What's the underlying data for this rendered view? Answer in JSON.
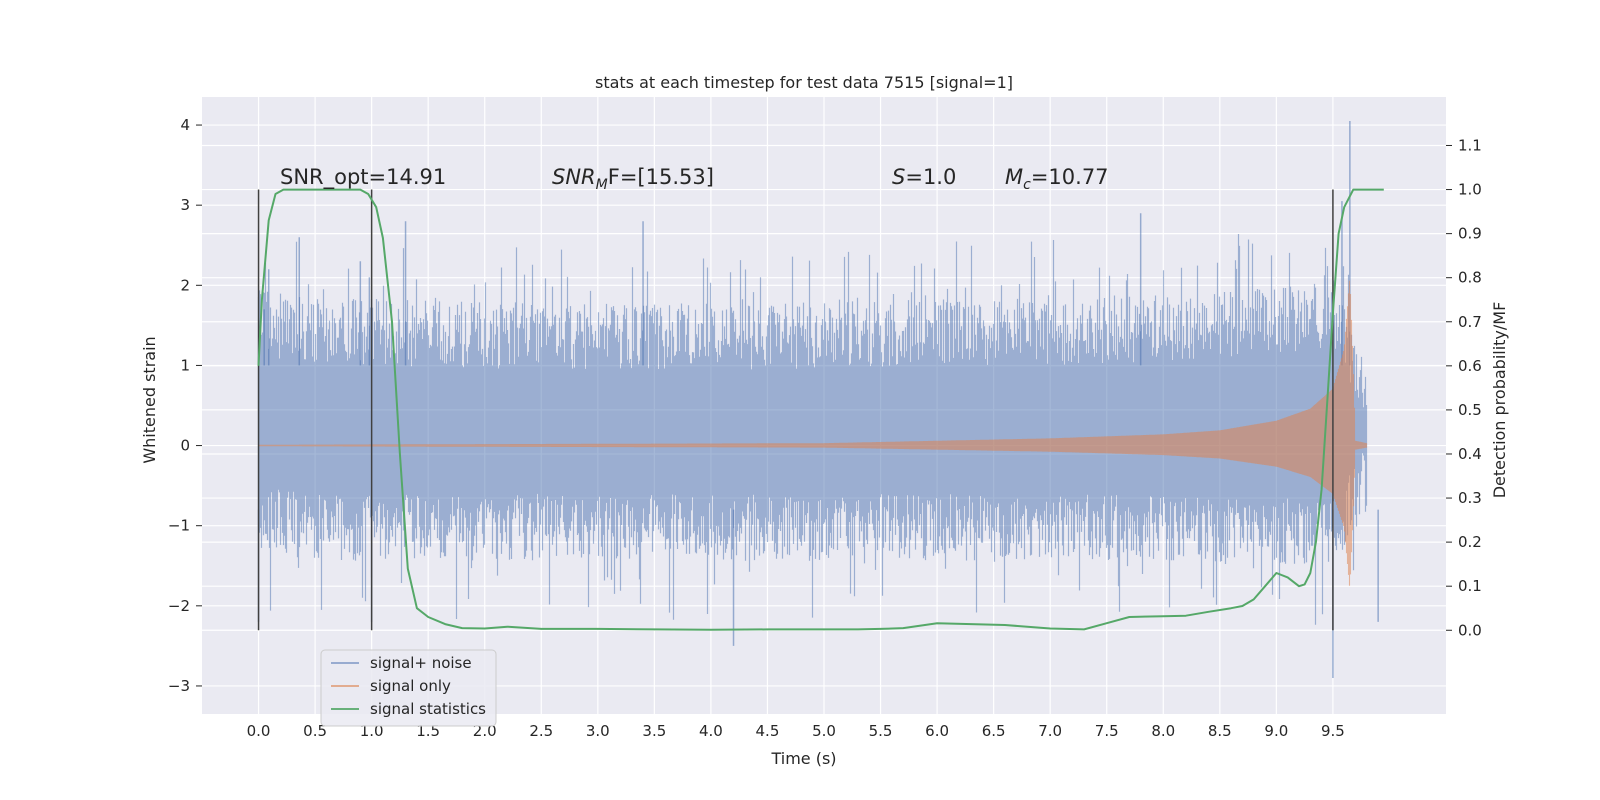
{
  "chart_data": {
    "type": "line",
    "title": "stats at each timestep for test data 7515 [signal=1]",
    "xlabel": "Time (s)",
    "ylabel_left": "Whitened strain",
    "ylabel_right": "Detection probability/MF",
    "xlim": [
      -0.5,
      10.5
    ],
    "ylim_left": [
      -3.35,
      4.35
    ],
    "ylim_right": [
      -0.19,
      1.21
    ],
    "x_ticks": [
      "0.0",
      "0.5",
      "1.0",
      "1.5",
      "2.0",
      "2.5",
      "3.0",
      "3.5",
      "4.0",
      "4.5",
      "5.0",
      "5.5",
      "6.0",
      "6.5",
      "7.0",
      "7.5",
      "8.0",
      "8.5",
      "9.0",
      "9.5"
    ],
    "y_ticks_left": [
      -3,
      -2,
      -1,
      0,
      1,
      2,
      3,
      4
    ],
    "y_ticks_right": [
      "0.0",
      "0.1",
      "0.2",
      "0.3",
      "0.4",
      "0.5",
      "0.6",
      "0.7",
      "0.8",
      "0.9",
      "1.0",
      "1.1"
    ],
    "grid": true,
    "legend_position": "lower-left",
    "colors": {
      "background": "#eaeaf2",
      "grid": "#ffffff",
      "noise": "#4c72b0",
      "signal": "#dd8452",
      "stats": "#55a868",
      "markers": "#404040"
    },
    "annotations": {
      "snr_opt": "SNR_opt=14.91",
      "snr_mf_prefix": "SNR",
      "snr_mf_sub": "M",
      "snr_mf_suffix": "F=[15.53]",
      "s_var": "S",
      "s_value": "=1.0",
      "mc_var": "M",
      "mc_sub": "c",
      "mc_value": "=10.77"
    },
    "vertical_markers_x": [
      0.0,
      1.0,
      9.5
    ],
    "noise_envelope": {
      "x": [
        0.0,
        0.5,
        1.0,
        2.0,
        3.0,
        4.0,
        5.0,
        6.0,
        7.0,
        8.0,
        8.5,
        9.0,
        9.5,
        9.8
      ],
      "upper": [
        1.7,
        1.6,
        1.6,
        1.55,
        1.55,
        1.55,
        1.55,
        1.6,
        1.6,
        1.65,
        1.7,
        1.75,
        1.8,
        1.0
      ],
      "lower": [
        -1.1,
        -1.2,
        -1.2,
        -1.2,
        -1.2,
        -1.2,
        -1.2,
        -1.2,
        -1.2,
        -1.2,
        -1.25,
        -1.25,
        -1.3,
        -0.6
      ]
    },
    "noise_peaks": {
      "x": [
        0.0,
        0.05,
        0.09,
        0.36,
        0.9,
        0.98,
        1.0,
        1.3,
        3.4,
        4.2,
        7.8,
        9.5,
        9.58,
        9.65,
        9.9
      ],
      "values": [
        -2.2,
        1.7,
        2.2,
        2.6,
        2.3,
        2.1,
        -2.2,
        2.8,
        2.8,
        -2.5,
        2.9,
        -2.9,
        3.05,
        4.05,
        -2.2
      ]
    },
    "signal_envelope": {
      "x": [
        0.0,
        5.0,
        6.0,
        7.0,
        8.0,
        8.5,
        9.0,
        9.3,
        9.5,
        9.6,
        9.65,
        9.68,
        9.7,
        9.8
      ],
      "amplitude": [
        0.0,
        0.02,
        0.05,
        0.08,
        0.13,
        0.18,
        0.3,
        0.45,
        0.7,
        1.2,
        2.1,
        1.0,
        0.05,
        0.02
      ]
    },
    "series": [
      {
        "name": "signal statistics",
        "axis": "right",
        "x": [
          0.0,
          0.03,
          0.09,
          0.15,
          0.22,
          0.35,
          0.5,
          0.7,
          0.9,
          0.97,
          1.04,
          1.1,
          1.18,
          1.25,
          1.32,
          1.4,
          1.5,
          1.65,
          1.8,
          2.0,
          2.2,
          2.5,
          3.0,
          3.5,
          4.0,
          4.5,
          5.0,
          5.3,
          5.5,
          5.7,
          6.0,
          6.3,
          6.6,
          7.0,
          7.3,
          7.5,
          7.7,
          8.0,
          8.2,
          8.4,
          8.6,
          8.7,
          8.8,
          8.9,
          9.0,
          9.1,
          9.2,
          9.25,
          9.3,
          9.35,
          9.4,
          9.45,
          9.5,
          9.55,
          9.6,
          9.68,
          9.75,
          9.85,
          9.95
        ],
        "y": [
          0.6,
          0.75,
          0.93,
          0.99,
          1.0,
          1.0,
          1.0,
          1.0,
          1.0,
          0.99,
          0.96,
          0.89,
          0.7,
          0.4,
          0.14,
          0.05,
          0.03,
          0.014,
          0.005,
          0.004,
          0.008,
          0.003,
          0.003,
          0.002,
          0.001,
          0.002,
          0.002,
          0.002,
          0.003,
          0.005,
          0.016,
          0.014,
          0.012,
          0.004,
          0.002,
          0.016,
          0.03,
          0.032,
          0.033,
          0.042,
          0.05,
          0.055,
          0.07,
          0.1,
          0.13,
          0.12,
          0.1,
          0.104,
          0.13,
          0.2,
          0.32,
          0.52,
          0.72,
          0.9,
          0.96,
          1.0,
          1.0,
          1.0,
          1.0
        ]
      },
      {
        "name": "signal+ noise",
        "axis": "left",
        "style": "dense_band"
      },
      {
        "name": "signal only",
        "axis": "left",
        "style": "chirp"
      }
    ],
    "legend": [
      "signal+ noise",
      "signal only",
      "signal statistics"
    ]
  }
}
